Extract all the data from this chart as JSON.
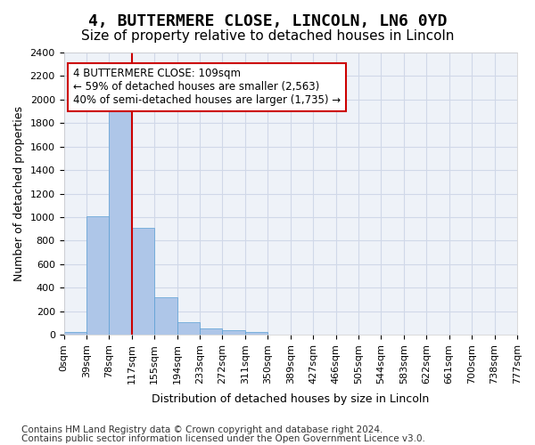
{
  "title": "4, BUTTERMERE CLOSE, LINCOLN, LN6 0YD",
  "subtitle": "Size of property relative to detached houses in Lincoln",
  "xlabel": "Distribution of detached houses by size in Lincoln",
  "ylabel": "Number of detached properties",
  "bar_values": [
    20,
    1010,
    1900,
    910,
    315,
    110,
    55,
    35,
    20,
    0,
    0,
    0,
    0,
    0,
    0,
    0,
    0,
    0,
    0,
    0
  ],
  "bar_labels": [
    "0sqm",
    "39sqm",
    "78sqm",
    "117sqm",
    "155sqm",
    "194sqm",
    "233sqm",
    "272sqm",
    "311sqm",
    "350sqm",
    "389sqm",
    "427sqm",
    "466sqm",
    "505sqm",
    "544sqm",
    "583sqm",
    "622sqm",
    "661sqm",
    "700sqm",
    "738sqm",
    "777sqm"
  ],
  "bar_color": "#aec6e8",
  "bar_edge_color": "#5a9fd4",
  "vline_x": 3,
  "vline_color": "#cc0000",
  "annotation_text": "4 BUTTERMERE CLOSE: 109sqm\n← 59% of detached houses are smaller (2,563)\n40% of semi-detached houses are larger (1,735) →",
  "annotation_box_color": "#ffffff",
  "annotation_box_edge_color": "#cc0000",
  "ylim": [
    0,
    2400
  ],
  "yticks": [
    0,
    200,
    400,
    600,
    800,
    1000,
    1200,
    1400,
    1600,
    1800,
    2000,
    2200,
    2400
  ],
  "footer_line1": "Contains HM Land Registry data © Crown copyright and database right 2024.",
  "footer_line2": "Contains public sector information licensed under the Open Government Licence v3.0.",
  "background_color": "#ffffff",
  "grid_color": "#d0d8e8",
  "title_fontsize": 13,
  "subtitle_fontsize": 11,
  "axis_label_fontsize": 9,
  "tick_fontsize": 8,
  "annotation_fontsize": 8.5,
  "footer_fontsize": 7.5
}
